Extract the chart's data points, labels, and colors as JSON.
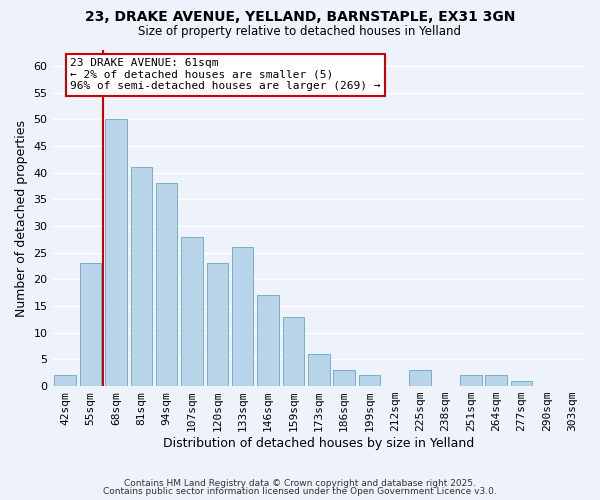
{
  "title": "23, DRAKE AVENUE, YELLAND, BARNSTAPLE, EX31 3GN",
  "subtitle": "Size of property relative to detached houses in Yelland",
  "xlabel": "Distribution of detached houses by size in Yelland",
  "ylabel": "Number of detached properties",
  "categories": [
    "42sqm",
    "55sqm",
    "68sqm",
    "81sqm",
    "94sqm",
    "107sqm",
    "120sqm",
    "133sqm",
    "146sqm",
    "159sqm",
    "173sqm",
    "186sqm",
    "199sqm",
    "212sqm",
    "225sqm",
    "238sqm",
    "251sqm",
    "264sqm",
    "277sqm",
    "290sqm",
    "303sqm"
  ],
  "values": [
    2,
    23,
    50,
    41,
    38,
    28,
    23,
    26,
    17,
    13,
    6,
    3,
    2,
    0,
    3,
    0,
    2,
    2,
    1,
    0,
    0
  ],
  "bar_color": "#b8d4e8",
  "bar_edge_color": "#7aaecc",
  "background_color": "#eef2fa",
  "grid_color": "#ffffff",
  "vline_color": "#cc0000",
  "vline_pos": 1.5,
  "annotation_text": "23 DRAKE AVENUE: 61sqm\n← 2% of detached houses are smaller (5)\n96% of semi-detached houses are larger (269) →",
  "annotation_box_edge": "#cc0000",
  "ylim": [
    0,
    63
  ],
  "yticks": [
    0,
    5,
    10,
    15,
    20,
    25,
    30,
    35,
    40,
    45,
    50,
    55,
    60
  ],
  "footer1": "Contains HM Land Registry data © Crown copyright and database right 2025.",
  "footer2": "Contains public sector information licensed under the Open Government Licence v3.0."
}
